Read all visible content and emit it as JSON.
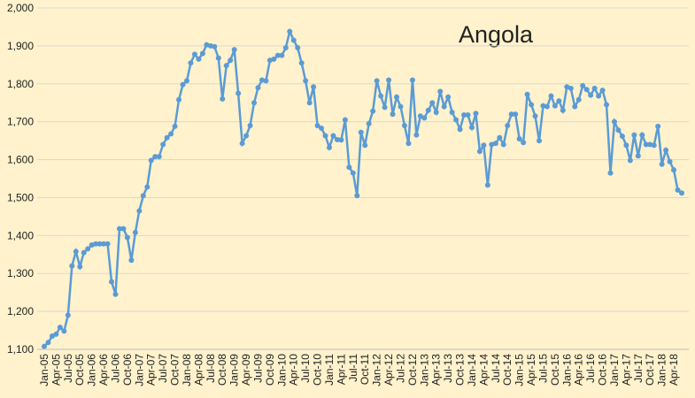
{
  "chart_data": {
    "type": "line",
    "title": "Angola",
    "categories": [
      "Jan-05",
      null,
      null,
      "Apr-05",
      null,
      null,
      "Jul-05",
      null,
      null,
      "Oct-05",
      null,
      null,
      "Jan-06",
      null,
      null,
      "Apr-06",
      null,
      null,
      "Jul-06",
      null,
      null,
      "Oct-06",
      null,
      null,
      "Jan-07",
      null,
      null,
      "Apr-07",
      null,
      null,
      "Jul-07",
      null,
      null,
      "Oct-07",
      null,
      null,
      "Jan-08",
      null,
      null,
      "Apr-08",
      null,
      null,
      "Jul-08",
      null,
      null,
      "Oct-08",
      null,
      null,
      "Jan-09",
      null,
      null,
      "Apr-09",
      null,
      null,
      "Jul-09",
      null,
      null,
      "Oct-09",
      null,
      null,
      "Jan-10",
      null,
      null,
      "Apr-10",
      null,
      null,
      "Jul-10",
      null,
      null,
      "Oct-10",
      null,
      null,
      "Jan-11",
      null,
      null,
      "Apr-11",
      null,
      null,
      "Jul-11",
      null,
      null,
      "Oct-11",
      null,
      null,
      "Jan-12",
      null,
      null,
      "Apr-12",
      null,
      null,
      "Jul-12",
      null,
      null,
      "Oct-12",
      null,
      null,
      "Jan-13",
      null,
      null,
      "Apr-13",
      null,
      null,
      "Jul-13",
      null,
      null,
      "Oct-13",
      null,
      null,
      "Jan-14",
      null,
      null,
      "Apr-14",
      null,
      null,
      "Jul-14",
      null,
      null,
      "Oct-14",
      null,
      null,
      "Jan-15",
      null,
      null,
      "Apr-15",
      null,
      null,
      "Jul-15",
      null,
      null,
      "Oct-15",
      null,
      null,
      "Jan-16",
      null,
      null,
      "Apr-16",
      null,
      null,
      "Jul-16",
      null,
      null,
      "Oct-16",
      null,
      null,
      "Jan-17",
      null,
      null,
      "Apr-17",
      null,
      null,
      "Jul-17",
      null,
      null,
      "Oct-17",
      null,
      null,
      "Jan-18",
      null,
      null,
      "Apr-18",
      null,
      null
    ],
    "values": [
      1108,
      1118,
      1135,
      1140,
      1158,
      1148,
      1190,
      1320,
      1358,
      1318,
      1355,
      1365,
      1375,
      1378,
      1378,
      1378,
      1378,
      1278,
      1245,
      1418,
      1418,
      1395,
      1335,
      1408,
      1465,
      1505,
      1528,
      1598,
      1608,
      1608,
      1640,
      1658,
      1668,
      1688,
      1758,
      1798,
      1808,
      1855,
      1878,
      1865,
      1880,
      1903,
      1900,
      1898,
      1868,
      1760,
      1848,
      1862,
      1890,
      1775,
      1643,
      1663,
      1690,
      1750,
      1790,
      1810,
      1808,
      1862,
      1865,
      1875,
      1875,
      1895,
      1938,
      1915,
      1895,
      1855,
      1808,
      1750,
      1792,
      1690,
      1683,
      1663,
      1632,
      1663,
      1653,
      1652,
      1705,
      1580,
      1565,
      1505,
      1672,
      1638,
      1695,
      1728,
      1808,
      1768,
      1738,
      1810,
      1720,
      1765,
      1740,
      1690,
      1643,
      1810,
      1665,
      1715,
      1710,
      1730,
      1750,
      1725,
      1780,
      1740,
      1765,
      1725,
      1705,
      1680,
      1718,
      1718,
      1685,
      1722,
      1622,
      1638,
      1533,
      1640,
      1643,
      1658,
      1640,
      1690,
      1720,
      1720,
      1655,
      1645,
      1772,
      1745,
      1715,
      1650,
      1742,
      1740,
      1768,
      1742,
      1755,
      1730,
      1792,
      1788,
      1740,
      1758,
      1795,
      1785,
      1770,
      1788,
      1768,
      1783,
      1745,
      1565,
      1700,
      1678,
      1662,
      1638,
      1598,
      1665,
      1610,
      1665,
      1640,
      1640,
      1638,
      1688,
      1588,
      1625,
      1595,
      1573,
      1520,
      1512
    ],
    "color": "#5b9bd5",
    "ylim": [
      1100,
      2000
    ],
    "yticks": [
      {
        "value": 1100,
        "label": "1,100"
      },
      {
        "value": 1200,
        "label": "1,200"
      },
      {
        "value": 1300,
        "label": "1,300"
      },
      {
        "value": 1400,
        "label": "1,400"
      },
      {
        "value": 1500,
        "label": "1,500"
      },
      {
        "value": 1600,
        "label": "1,600"
      },
      {
        "value": 1700,
        "label": "1,700"
      },
      {
        "value": 1800,
        "label": "1,800"
      },
      {
        "value": 1900,
        "label": "1,900"
      },
      {
        "value": 2000,
        "label": "2,000"
      }
    ],
    "grid": true
  }
}
